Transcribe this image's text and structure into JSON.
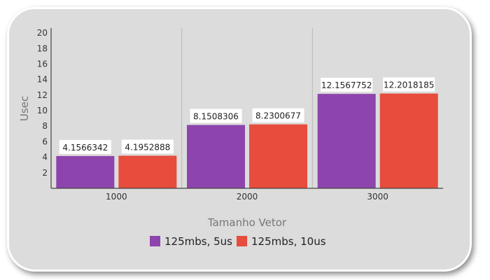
{
  "chart_data": {
    "type": "bar",
    "xlabel": "Tamanho Vetor",
    "ylabel": "Usec",
    "categories": [
      "1000",
      "2000",
      "3000"
    ],
    "yticks": [
      "2",
      "4",
      "6",
      "8",
      "10",
      "12",
      "14",
      "16",
      "18",
      "20"
    ],
    "ylim": [
      0,
      21
    ],
    "grid": "vertical separators between categories",
    "legend_position": "bottom",
    "series": [
      {
        "name": "125mbs, 5us",
        "color": "#8e44ad",
        "values": [
          4.1566342,
          8.1508306,
          12.1567752
        ],
        "labels": [
          "4.1566342",
          "8.1508306",
          "12.1567752"
        ]
      },
      {
        "name": "125mbs, 10us",
        "color": "#e74c3c",
        "values": [
          4.1952888,
          8.2300677,
          12.2018185
        ],
        "labels": [
          "4.1952888",
          "8.2300677",
          "12.2018185"
        ]
      }
    ]
  }
}
